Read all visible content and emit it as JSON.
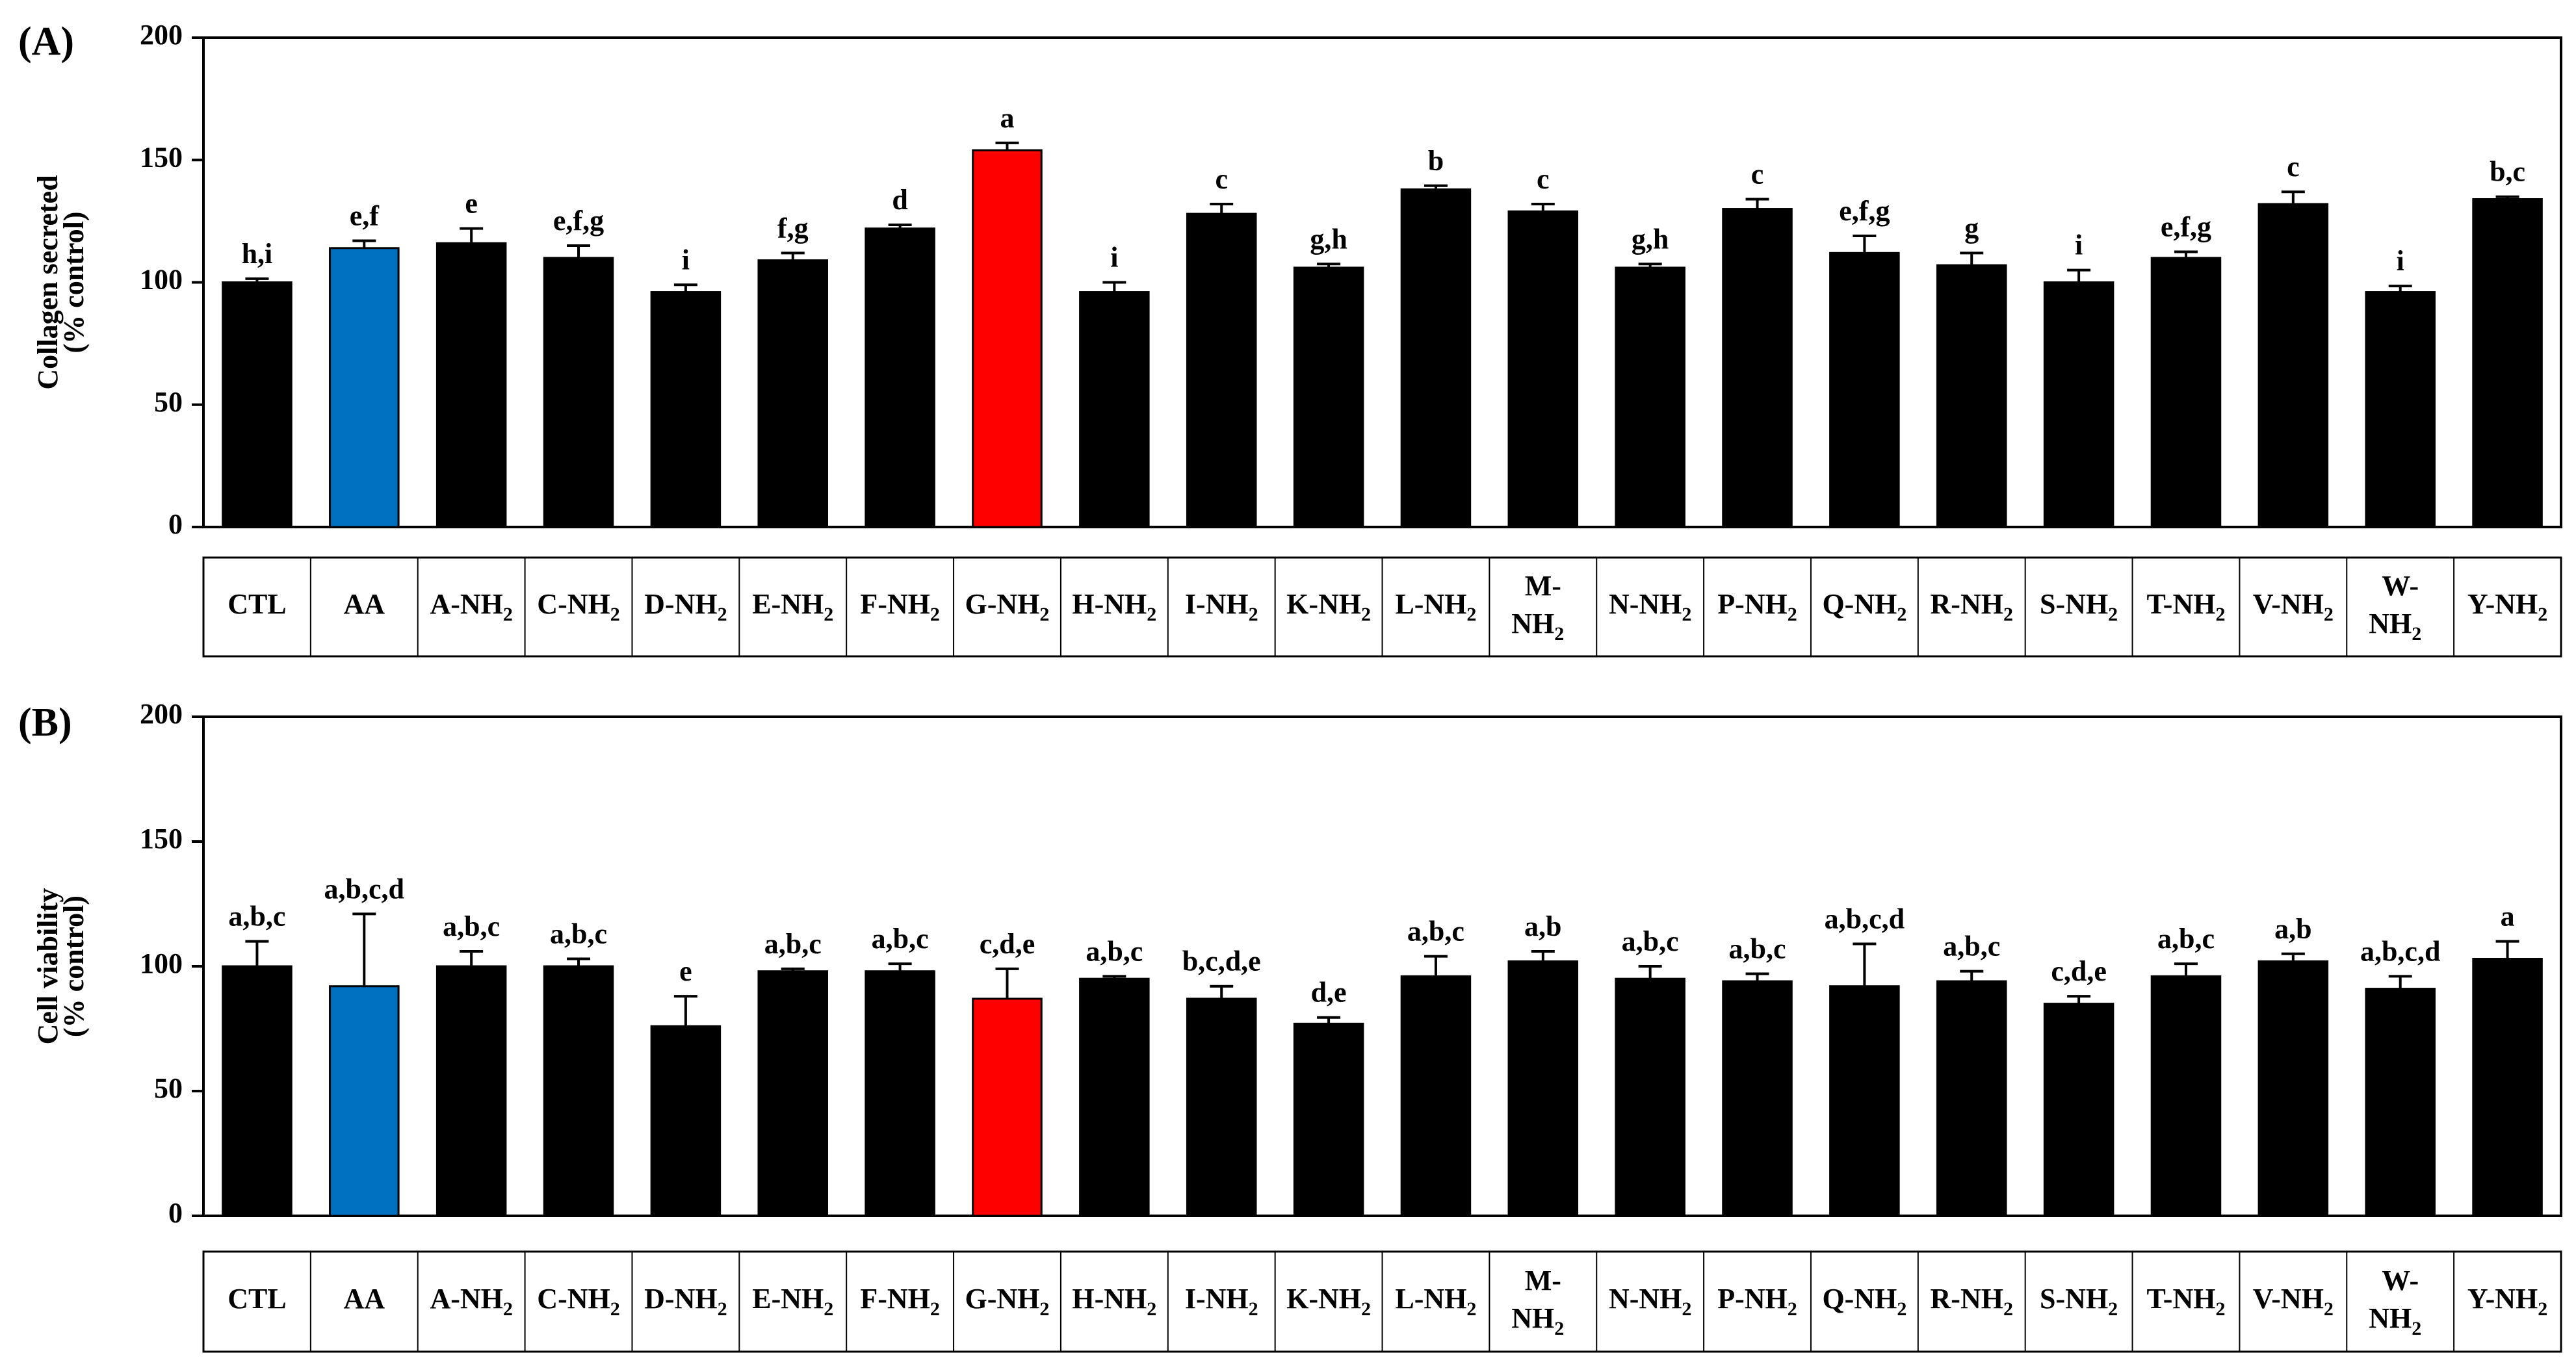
{
  "colors": {
    "default_bar": "#000000",
    "highlight_blue": "#0070C0",
    "highlight_red": "#FF0000"
  },
  "chart_data": [
    {
      "type": "bar",
      "panel_label": "(A)",
      "ylabel_line1": "Collagen secreted",
      "ylabel_line2": "(% control)",
      "ylim": [
        0,
        200
      ],
      "yticks": [
        0,
        50,
        100,
        150,
        200
      ],
      "grid": false,
      "categories": [
        {
          "main": "CTL",
          "sub": ""
        },
        {
          "main": "AA",
          "sub": ""
        },
        {
          "main": "A-NH",
          "sub": "2"
        },
        {
          "main": "C-NH",
          "sub": "2"
        },
        {
          "main": "D-NH",
          "sub": "2"
        },
        {
          "main": "E-NH",
          "sub": "2"
        },
        {
          "main": "F-NH",
          "sub": "2"
        },
        {
          "main": "G-NH",
          "sub": "2"
        },
        {
          "main": "H-NH",
          "sub": "2"
        },
        {
          "main": "I-NH",
          "sub": "2"
        },
        {
          "main": "K-NH",
          "sub": "2"
        },
        {
          "main": "L-NH",
          "sub": "2"
        },
        {
          "main": "M-",
          "main2": "NH",
          "sub": "2"
        },
        {
          "main": "N-NH",
          "sub": "2"
        },
        {
          "main": "P-NH",
          "sub": "2"
        },
        {
          "main": "Q-NH",
          "sub": "2"
        },
        {
          "main": "R-NH",
          "sub": "2"
        },
        {
          "main": "S-NH",
          "sub": "2"
        },
        {
          "main": "T-NH",
          "sub": "2"
        },
        {
          "main": "V-NH",
          "sub": "2"
        },
        {
          "main": "W-",
          "main2": "NH",
          "sub": "2"
        },
        {
          "main": "Y-NH",
          "sub": "2"
        }
      ],
      "values": [
        100,
        114,
        116,
        110,
        96,
        109,
        122,
        154,
        96,
        128,
        106,
        138,
        129,
        106,
        130,
        112,
        107,
        100,
        110,
        132,
        96,
        134
      ],
      "errors": [
        1.5,
        3,
        6,
        5,
        3,
        3,
        1.5,
        3,
        4,
        4,
        1.5,
        1.5,
        3,
        1.5,
        4,
        7,
        5,
        5,
        2.5,
        5,
        2.5,
        1
      ],
      "letters": [
        "h,i",
        "e,f",
        "e",
        "e,f,g",
        "i",
        "f,g",
        "d",
        "a",
        "i",
        "c",
        "g,h",
        "b",
        "c",
        "g,h",
        "c",
        "e,f,g",
        "g",
        "i",
        "e,f,g",
        "c",
        "i",
        "b,c"
      ],
      "highlight": {
        "1": "highlight_blue",
        "7": "highlight_red"
      }
    },
    {
      "type": "bar",
      "panel_label": "(B)",
      "ylabel_line1": "Cell viability",
      "ylabel_line2": "(% control)",
      "ylim": [
        0,
        200
      ],
      "yticks": [
        0,
        50,
        100,
        150,
        200
      ],
      "grid": false,
      "categories": [
        {
          "main": "CTL",
          "sub": ""
        },
        {
          "main": "AA",
          "sub": ""
        },
        {
          "main": "A-NH",
          "sub": "2"
        },
        {
          "main": "C-NH",
          "sub": "2"
        },
        {
          "main": "D-NH",
          "sub": "2"
        },
        {
          "main": "E-NH",
          "sub": "2"
        },
        {
          "main": "F-NH",
          "sub": "2"
        },
        {
          "main": "G-NH",
          "sub": "2"
        },
        {
          "main": "H-NH",
          "sub": "2"
        },
        {
          "main": "I-NH",
          "sub": "2"
        },
        {
          "main": "K-NH",
          "sub": "2"
        },
        {
          "main": "L-NH",
          "sub": "2"
        },
        {
          "main": "M-",
          "main2": "NH",
          "sub": "2"
        },
        {
          "main": "N-NH",
          "sub": "2"
        },
        {
          "main": "P-NH",
          "sub": "2"
        },
        {
          "main": "Q-NH",
          "sub": "2"
        },
        {
          "main": "R-NH",
          "sub": "2"
        },
        {
          "main": "S-NH",
          "sub": "2"
        },
        {
          "main": "T-NH",
          "sub": "2"
        },
        {
          "main": "V-NH",
          "sub": "2"
        },
        {
          "main": "W-",
          "main2": "NH",
          "sub": "2"
        },
        {
          "main": "Y-NH",
          "sub": "2"
        }
      ],
      "values": [
        100,
        92,
        100,
        100,
        76,
        98,
        98,
        87,
        95,
        87,
        77,
        96,
        102,
        95,
        94,
        92,
        94,
        85,
        96,
        102,
        91,
        103
      ],
      "errors": [
        10,
        29,
        6,
        3,
        12,
        1,
        3,
        12,
        1,
        5,
        2.5,
        8,
        4,
        5,
        3,
        17,
        4,
        3,
        5,
        3,
        5,
        7
      ],
      "letters": [
        "a,b,c",
        "a,b,c,d",
        "a,b,c",
        "a,b,c",
        "e",
        "a,b,c",
        "a,b,c",
        "c,d,e",
        "a,b,c",
        "b,c,d,e",
        "d,e",
        "a,b,c",
        "a,b",
        "a,b,c",
        "a,b,c",
        "a,b,c,d",
        "a,b,c",
        "c,d,e",
        "a,b,c",
        "a,b",
        "a,b,c,d",
        "a"
      ],
      "highlight": {
        "1": "highlight_blue",
        "7": "highlight_red"
      }
    }
  ]
}
